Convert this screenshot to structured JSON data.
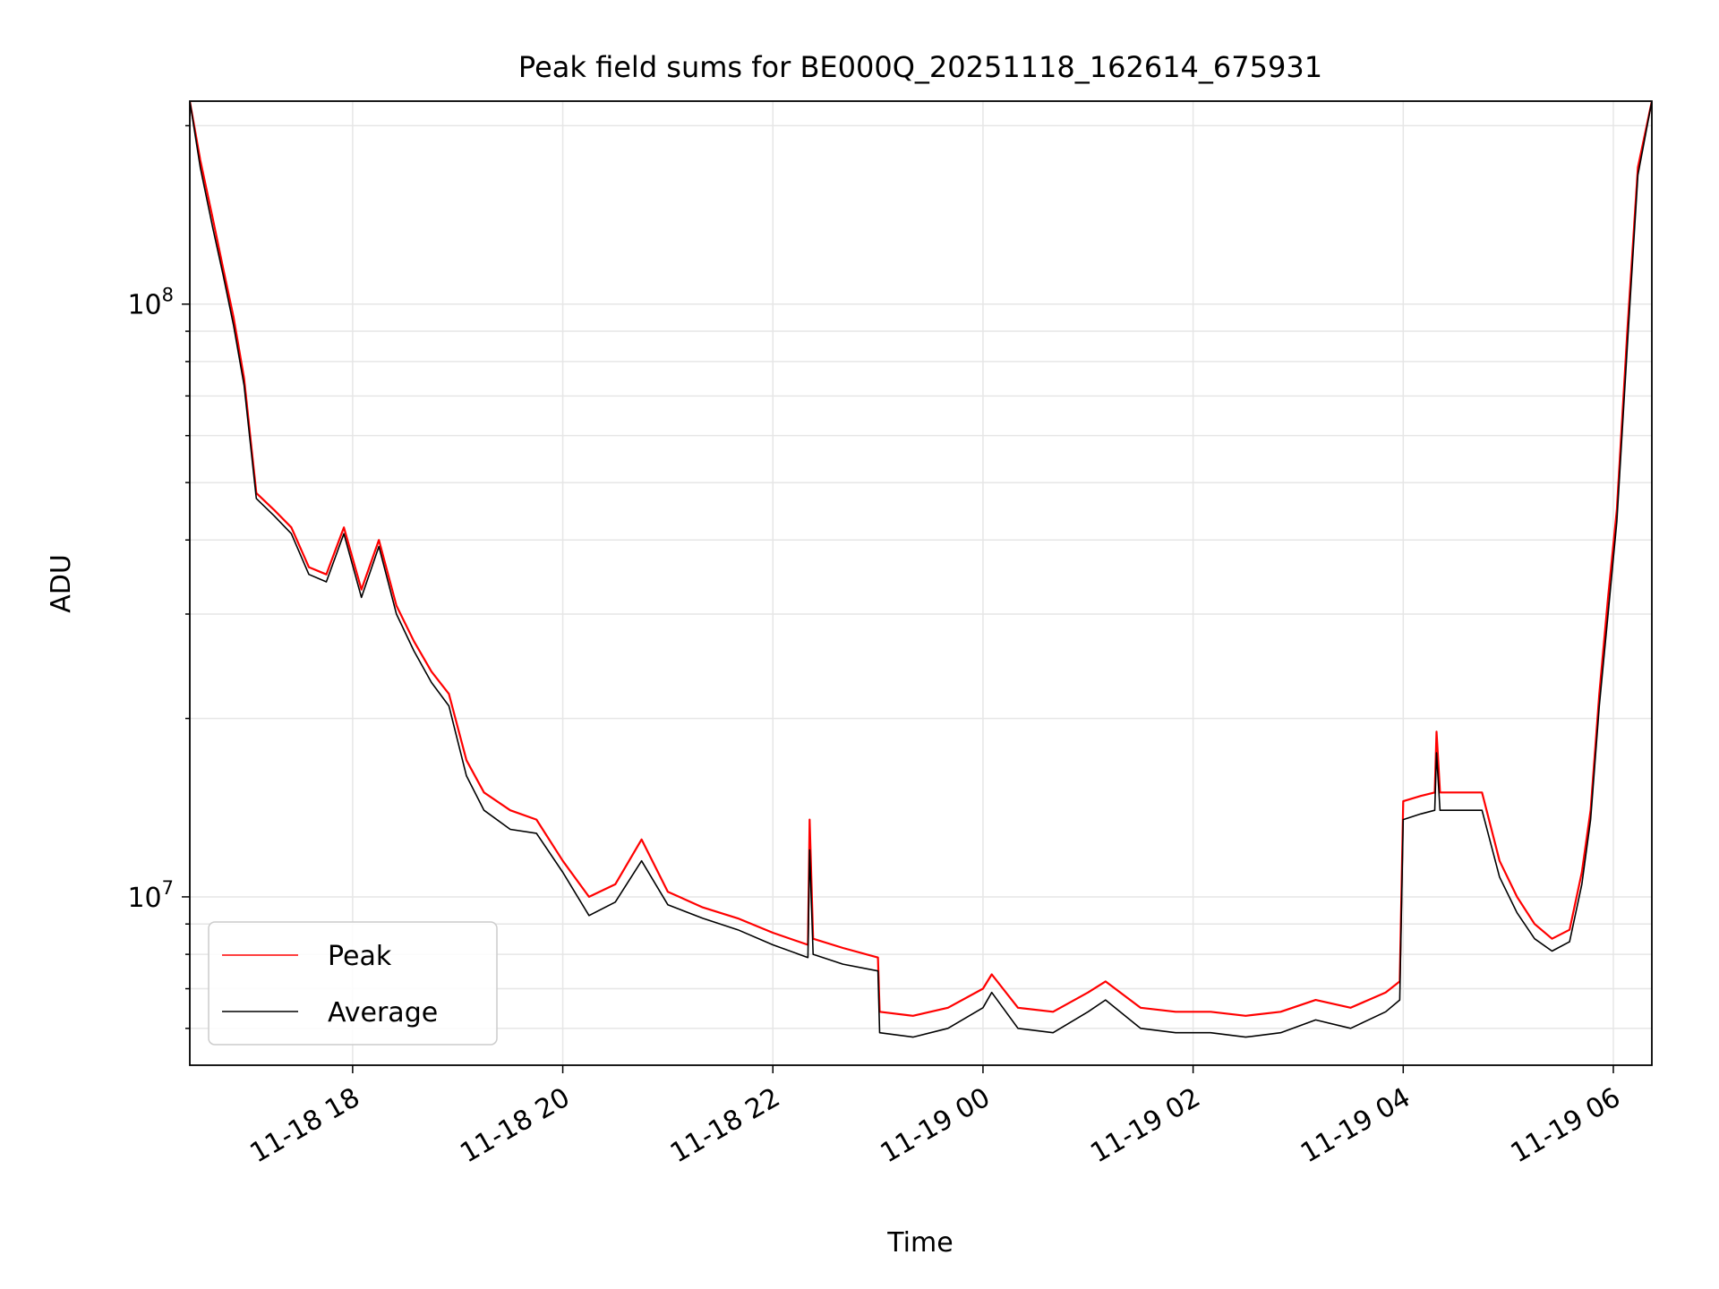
{
  "chart_data": {
    "type": "line",
    "title": "Peak field sums for BE000Q_20251118_162614_675931",
    "xlabel": "Time",
    "ylabel": "ADU",
    "yscale": "log",
    "xlim": [
      "2025-11-18 16:27",
      "2025-11-19 06:22"
    ],
    "ylim": [
      5200000,
      220000000
    ],
    "x_ticks": [
      "11-18 18",
      "11-18 20",
      "11-18 22",
      "11-19 00",
      "11-19 02",
      "11-19 04",
      "11-19 06"
    ],
    "y_ticks": [
      {
        "value": 10000000,
        "base": "10",
        "exp": "7"
      },
      {
        "value": 100000000,
        "base": "10",
        "exp": "8"
      }
    ],
    "grid": true,
    "legend": {
      "position": "lower-left",
      "entries": [
        "Peak",
        "Average"
      ]
    },
    "series": [
      {
        "name": "Peak",
        "color": "#ff0000",
        "x": [
          "2025-11-18 16:27",
          "2025-11-18 16:33",
          "2025-11-18 16:40",
          "2025-11-18 16:46",
          "2025-11-18 16:52",
          "2025-11-18 16:58",
          "2025-11-18 17:05",
          "2025-11-18 17:15",
          "2025-11-18 17:25",
          "2025-11-18 17:35",
          "2025-11-18 17:45",
          "2025-11-18 17:55",
          "2025-11-18 18:05",
          "2025-11-18 18:15",
          "2025-11-18 18:25",
          "2025-11-18 18:35",
          "2025-11-18 18:45",
          "2025-11-18 18:55",
          "2025-11-18 19:05",
          "2025-11-18 19:15",
          "2025-11-18 19:30",
          "2025-11-18 19:45",
          "2025-11-18 20:00",
          "2025-11-18 20:15",
          "2025-11-18 20:30",
          "2025-11-18 20:45",
          "2025-11-18 21:00",
          "2025-11-18 21:20",
          "2025-11-18 21:40",
          "2025-11-18 22:00",
          "2025-11-18 22:20",
          "2025-11-18 22:21",
          "2025-11-18 22:23",
          "2025-11-18 22:40",
          "2025-11-18 23:00",
          "2025-11-18 23:01",
          "2025-11-18 23:20",
          "2025-11-18 23:40",
          "2025-11-19 00:00",
          "2025-11-19 00:05",
          "2025-11-19 00:20",
          "2025-11-19 00:40",
          "2025-11-19 01:00",
          "2025-11-19 01:10",
          "2025-11-19 01:30",
          "2025-11-19 01:50",
          "2025-11-19 02:10",
          "2025-11-19 02:30",
          "2025-11-19 02:50",
          "2025-11-19 03:10",
          "2025-11-19 03:30",
          "2025-11-19 03:50",
          "2025-11-19 03:58",
          "2025-11-19 04:00",
          "2025-11-19 04:10",
          "2025-11-19 04:18",
          "2025-11-19 04:19",
          "2025-11-19 04:21",
          "2025-11-19 04:30",
          "2025-11-19 04:45",
          "2025-11-19 04:55",
          "2025-11-19 05:05",
          "2025-11-19 05:15",
          "2025-11-19 05:25",
          "2025-11-19 05:35",
          "2025-11-19 05:42",
          "2025-11-19 05:47",
          "2025-11-19 05:52",
          "2025-11-19 05:57",
          "2025-11-19 06:02",
          "2025-11-19 06:08",
          "2025-11-19 06:14",
          "2025-11-19 06:22"
        ],
        "values": [
          220000000,
          175000000,
          140000000,
          115000000,
          95000000,
          75000000,
          48000000,
          45000000,
          42000000,
          36000000,
          35000000,
          42000000,
          33000000,
          40000000,
          31000000,
          27000000,
          24000000,
          22000000,
          17000000,
          15000000,
          14000000,
          13500000,
          11500000,
          10000000,
          10500000,
          12500000,
          10200000,
          9600000,
          9200000,
          8700000,
          8300000,
          13500000,
          8500000,
          8200000,
          7900000,
          6400000,
          6300000,
          6500000,
          7000000,
          7400000,
          6500000,
          6400000,
          6900000,
          7200000,
          6500000,
          6400000,
          6400000,
          6300000,
          6400000,
          6700000,
          6500000,
          6900000,
          7200000,
          14500000,
          14800000,
          15000000,
          19000000,
          15000000,
          15000000,
          15000000,
          11500000,
          10000000,
          9000000,
          8500000,
          8800000,
          11000000,
          14000000,
          22000000,
          32000000,
          45000000,
          90000000,
          170000000,
          220000000
        ]
      },
      {
        "name": "Average",
        "color": "#000000",
        "x": [
          "2025-11-18 16:27",
          "2025-11-18 16:33",
          "2025-11-18 16:40",
          "2025-11-18 16:46",
          "2025-11-18 16:52",
          "2025-11-18 16:58",
          "2025-11-18 17:05",
          "2025-11-18 17:15",
          "2025-11-18 17:25",
          "2025-11-18 17:35",
          "2025-11-18 17:45",
          "2025-11-18 17:55",
          "2025-11-18 18:05",
          "2025-11-18 18:15",
          "2025-11-18 18:25",
          "2025-11-18 18:35",
          "2025-11-18 18:45",
          "2025-11-18 18:55",
          "2025-11-18 19:05",
          "2025-11-18 19:15",
          "2025-11-18 19:30",
          "2025-11-18 19:45",
          "2025-11-18 20:00",
          "2025-11-18 20:15",
          "2025-11-18 20:30",
          "2025-11-18 20:45",
          "2025-11-18 21:00",
          "2025-11-18 21:20",
          "2025-11-18 21:40",
          "2025-11-18 22:00",
          "2025-11-18 22:20",
          "2025-11-18 22:21",
          "2025-11-18 22:23",
          "2025-11-18 22:40",
          "2025-11-18 23:00",
          "2025-11-18 23:01",
          "2025-11-18 23:20",
          "2025-11-18 23:40",
          "2025-11-19 00:00",
          "2025-11-19 00:05",
          "2025-11-19 00:20",
          "2025-11-19 00:40",
          "2025-11-19 01:00",
          "2025-11-19 01:10",
          "2025-11-19 01:30",
          "2025-11-19 01:50",
          "2025-11-19 02:10",
          "2025-11-19 02:30",
          "2025-11-19 02:50",
          "2025-11-19 03:10",
          "2025-11-19 03:30",
          "2025-11-19 03:50",
          "2025-11-19 03:58",
          "2025-11-19 04:00",
          "2025-11-19 04:10",
          "2025-11-19 04:18",
          "2025-11-19 04:19",
          "2025-11-19 04:21",
          "2025-11-19 04:30",
          "2025-11-19 04:45",
          "2025-11-19 04:55",
          "2025-11-19 05:05",
          "2025-11-19 05:15",
          "2025-11-19 05:25",
          "2025-11-19 05:35",
          "2025-11-19 05:42",
          "2025-11-19 05:47",
          "2025-11-19 05:52",
          "2025-11-19 05:57",
          "2025-11-19 06:02",
          "2025-11-19 06:08",
          "2025-11-19 06:14",
          "2025-11-19 06:22"
        ],
        "values": [
          220000000,
          170000000,
          135000000,
          112000000,
          92000000,
          73000000,
          47000000,
          44000000,
          41000000,
          35000000,
          34000000,
          41000000,
          32000000,
          39000000,
          30000000,
          26000000,
          23000000,
          21000000,
          16000000,
          14000000,
          13000000,
          12800000,
          11000000,
          9300000,
          9800000,
          11500000,
          9700000,
          9200000,
          8800000,
          8300000,
          7900000,
          12000000,
          8000000,
          7700000,
          7500000,
          5900000,
          5800000,
          6000000,
          6500000,
          6900000,
          6000000,
          5900000,
          6400000,
          6700000,
          6000000,
          5900000,
          5900000,
          5800000,
          5900000,
          6200000,
          6000000,
          6400000,
          6700000,
          13500000,
          13800000,
          14000000,
          17500000,
          14000000,
          14000000,
          14000000,
          10800000,
          9400000,
          8500000,
          8100000,
          8400000,
          10500000,
          13500000,
          21000000,
          30000000,
          43000000,
          85000000,
          165000000,
          220000000
        ]
      }
    ]
  }
}
